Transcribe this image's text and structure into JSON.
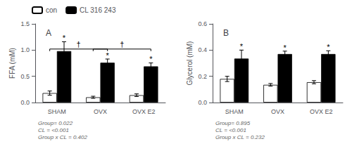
{
  "chart_data": [
    {
      "type": "bar",
      "title": "A",
      "ylabel": "FFA (mM)",
      "categories": [
        "SHAM",
        "OVX",
        "OVX E2"
      ],
      "series": [
        {
          "name": "con",
          "color": "white",
          "values": [
            0.18,
            0.1,
            0.14
          ],
          "errors": [
            0.04,
            0.02,
            0.025
          ]
        },
        {
          "name": "CL 316 243",
          "color": "black",
          "values": [
            0.98,
            0.76,
            0.69
          ],
          "errors": [
            0.18,
            0.07,
            0.065
          ]
        }
      ],
      "ylim": [
        0,
        1.5
      ],
      "yticks": [
        {
          "value": 0,
          "label": "0.0"
        },
        0.5,
        {
          "value": 1,
          "label": "1.0"
        },
        1.5
      ],
      "grid": false,
      "legend": "upper left",
      "annotations": [
        {
          "text": "*",
          "series": "CL 316 243",
          "category": "SHAM"
        },
        {
          "text": "*",
          "series": "CL 316 243",
          "category": "OVX"
        },
        {
          "text": "*",
          "series": "CL 316 243",
          "category": "OVX E2"
        },
        {
          "text": "†",
          "from": "SHAM",
          "to": "OVX",
          "y": 1.02,
          "drop": 0.04
        },
        {
          "text": "†",
          "from": "OVX",
          "to": "OVX E2",
          "y": 1.02,
          "drop": 0.04
        },
        {
          "text": "Group= 0.022\nCL = <0.001\nGroup x CL = 0.402"
        }
      ]
    },
    {
      "type": "bar",
      "title": "B",
      "ylabel": "Glycerol (mM)",
      "categories": [
        "SHAM",
        "OVX",
        "OVX E2"
      ],
      "series": [
        {
          "name": "con",
          "color": "white",
          "values": [
            0.18,
            0.135,
            0.155
          ],
          "errors": [
            0.02,
            0.01,
            0.012
          ]
        },
        {
          "name": "CL 316 243",
          "color": "black",
          "values": [
            0.335,
            0.37,
            0.37
          ],
          "errors": [
            0.065,
            0.022,
            0.025
          ]
        }
      ],
      "ylim": [
        0,
        0.6
      ],
      "yticks": [
        {
          "value": 0,
          "label": "0.0"
        },
        0.2,
        0.4,
        0.6
      ],
      "grid": false,
      "annotations": [
        {
          "text": "*",
          "series": "CL 316 243",
          "category": "SHAM"
        },
        {
          "text": "*",
          "series": "CL 316 243",
          "category": "OVX"
        },
        {
          "text": "*",
          "series": "CL 316 243",
          "category": "OVX E2"
        },
        {
          "text": "Group= 0.895\nCL = <0.001\nGroup x CL = 0.232"
        }
      ]
    }
  ]
}
